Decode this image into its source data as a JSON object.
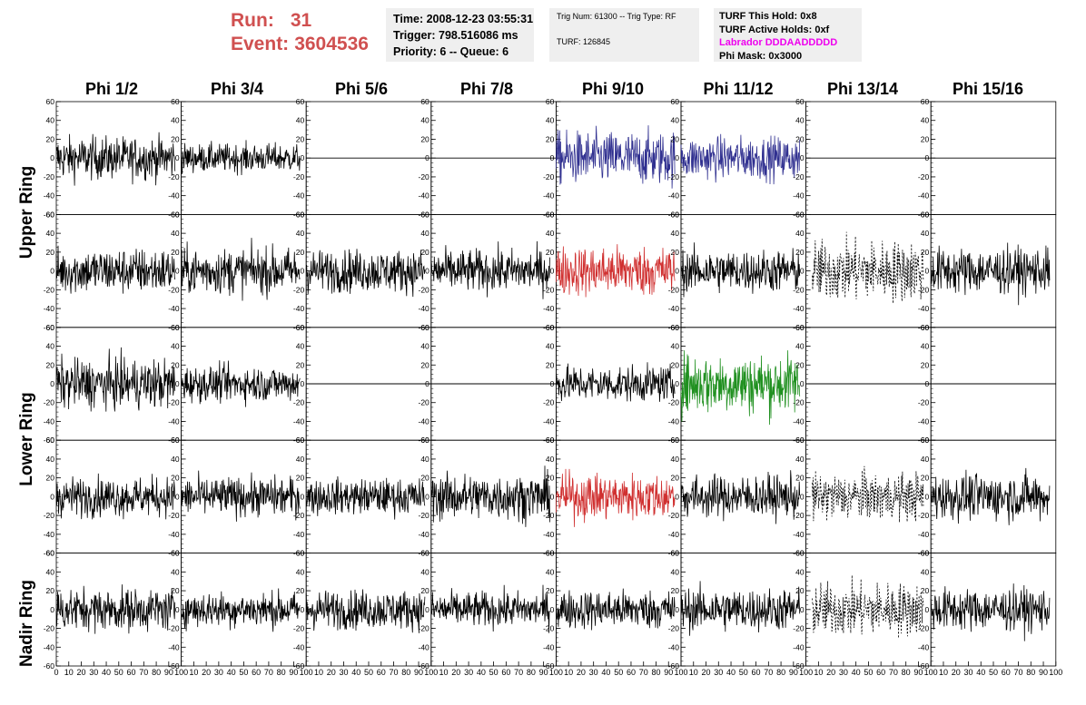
{
  "header": {
    "run_label": "Run:",
    "run_value": "31",
    "event_label": "Event:",
    "event_value": "3604536"
  },
  "info_box_1": {
    "time": "Time: 2008-12-23 03:55:31",
    "trigger": "Trigger: 798.516086 ms",
    "priority": "Priority: 6 -- Queue: 6"
  },
  "info_box_2": {
    "trig": "Trig Num: 61300 -- Trig Type: RF",
    "turf": "TURF: 126845"
  },
  "info_box_3": {
    "this_hold": "TURF This Hold: 0x8",
    "active_holds": "TURF Active Holds: 0xf",
    "labrador": "Labrador DDDAADDDDD",
    "phi_mask": "Phi Mask: 0x3000"
  },
  "colors": {
    "upper_ring_phi_9_10": "#303090",
    "upper_ring_phi_11_12": "#303090",
    "triggered": "#d03030",
    "lower_ring_phi_11_12": "#209020",
    "normal": "#000000",
    "info_box_bg": "#efefef",
    "run_text": "#d05050",
    "labrador_text": "#ee00ee"
  },
  "chart_data": {
    "type": "line",
    "columns": [
      "Phi 1/2",
      "Phi 3/4",
      "Phi 5/6",
      "Phi 7/8",
      "Phi 9/10",
      "Phi 11/12",
      "Phi 13/14",
      "Phi 15/16"
    ],
    "row_groups": [
      "Upper Ring",
      "Lower Ring",
      "Nadir Ring"
    ],
    "rows": 5,
    "xlim": [
      0,
      100
    ],
    "ylim": [
      -60,
      60
    ],
    "y_ticks": [
      "60",
      "40",
      "20",
      "0",
      "-20",
      "-40",
      "-60"
    ],
    "x_ticks_row": "0 10 20 30 40 50 60 70 80 90 100",
    "x_tick_values": [
      10,
      20,
      30,
      40,
      50,
      60,
      70,
      80,
      90,
      100
    ],
    "traces": [
      [
        "noise:12",
        "noise:8",
        "flat",
        "flat",
        "noise:15:upper_ring_phi_9_10",
        "noise:12:upper_ring_phi_11_12",
        "flat",
        "flat"
      ],
      [
        "noise:13",
        "noise:13",
        "noise:12",
        "noise:12",
        "noise:14:triggered",
        "noise:12",
        "dashed:17",
        "noise:13"
      ],
      [
        "noise:14",
        "noise:10",
        "flat",
        "flat",
        "noise:10",
        "noise:17:lower_ring_phi_11_12",
        "flat",
        "flat"
      ],
      [
        "noise:11",
        "noise:11",
        "noise:10",
        "noise:13",
        "noise:13:triggered",
        "noise:12",
        "dashed:13",
        "noise:13"
      ],
      [
        "noise:12",
        "noise:10",
        "noise:11",
        "noise:10",
        "noise:11",
        "noise:12",
        "dashed:15",
        "noise:12"
      ]
    ]
  }
}
